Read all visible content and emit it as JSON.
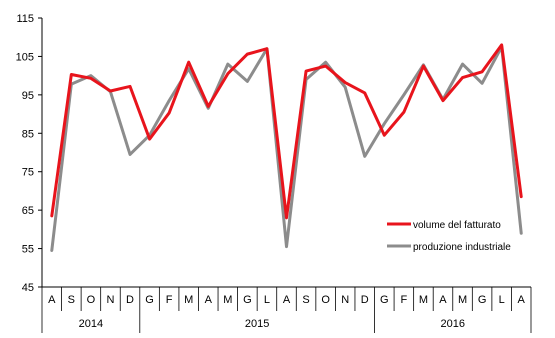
{
  "chart_data": {
    "type": "line",
    "title": "",
    "xlabel": "",
    "ylabel": "",
    "ylim": [
      45,
      115
    ],
    "yticks": [
      45,
      55,
      65,
      75,
      85,
      95,
      105,
      115
    ],
    "grid": false,
    "legend_position": "bottom-right",
    "x": [
      "A",
      "S",
      "O",
      "N",
      "D",
      "G",
      "F",
      "M",
      "A",
      "M",
      "G",
      "L",
      "A",
      "S",
      "O",
      "N",
      "D",
      "G",
      "F",
      "M",
      "A",
      "M",
      "G",
      "L",
      "A"
    ],
    "years": [
      {
        "label": "2014",
        "start": 0,
        "end": 4
      },
      {
        "label": "2015",
        "start": 5,
        "end": 16
      },
      {
        "label": "2016",
        "start": 17,
        "end": 24
      }
    ],
    "series": [
      {
        "name": "volume del fatturato",
        "color": "#e8141c",
        "values": [
          63.5,
          100.3,
          99.3,
          96.0,
          97.2,
          83.5,
          90.3,
          103.5,
          92.0,
          100.5,
          105.6,
          107.0,
          63.0,
          101.2,
          102.5,
          98.2,
          95.5,
          84.5,
          90.5,
          102.5,
          93.5,
          99.5,
          101.0,
          108.0,
          68.5
        ]
      },
      {
        "name": "produzione industriale",
        "color": "#8c8c8c",
        "values": [
          54.5,
          97.8,
          100.0,
          95.8,
          79.5,
          84.5,
          93.5,
          101.8,
          91.5,
          103.0,
          98.5,
          107.0,
          55.5,
          99.0,
          103.5,
          97.0,
          79.0,
          87.5,
          95.0,
          102.8,
          93.8,
          103.0,
          98.0,
          107.5,
          59.0
        ]
      }
    ]
  }
}
